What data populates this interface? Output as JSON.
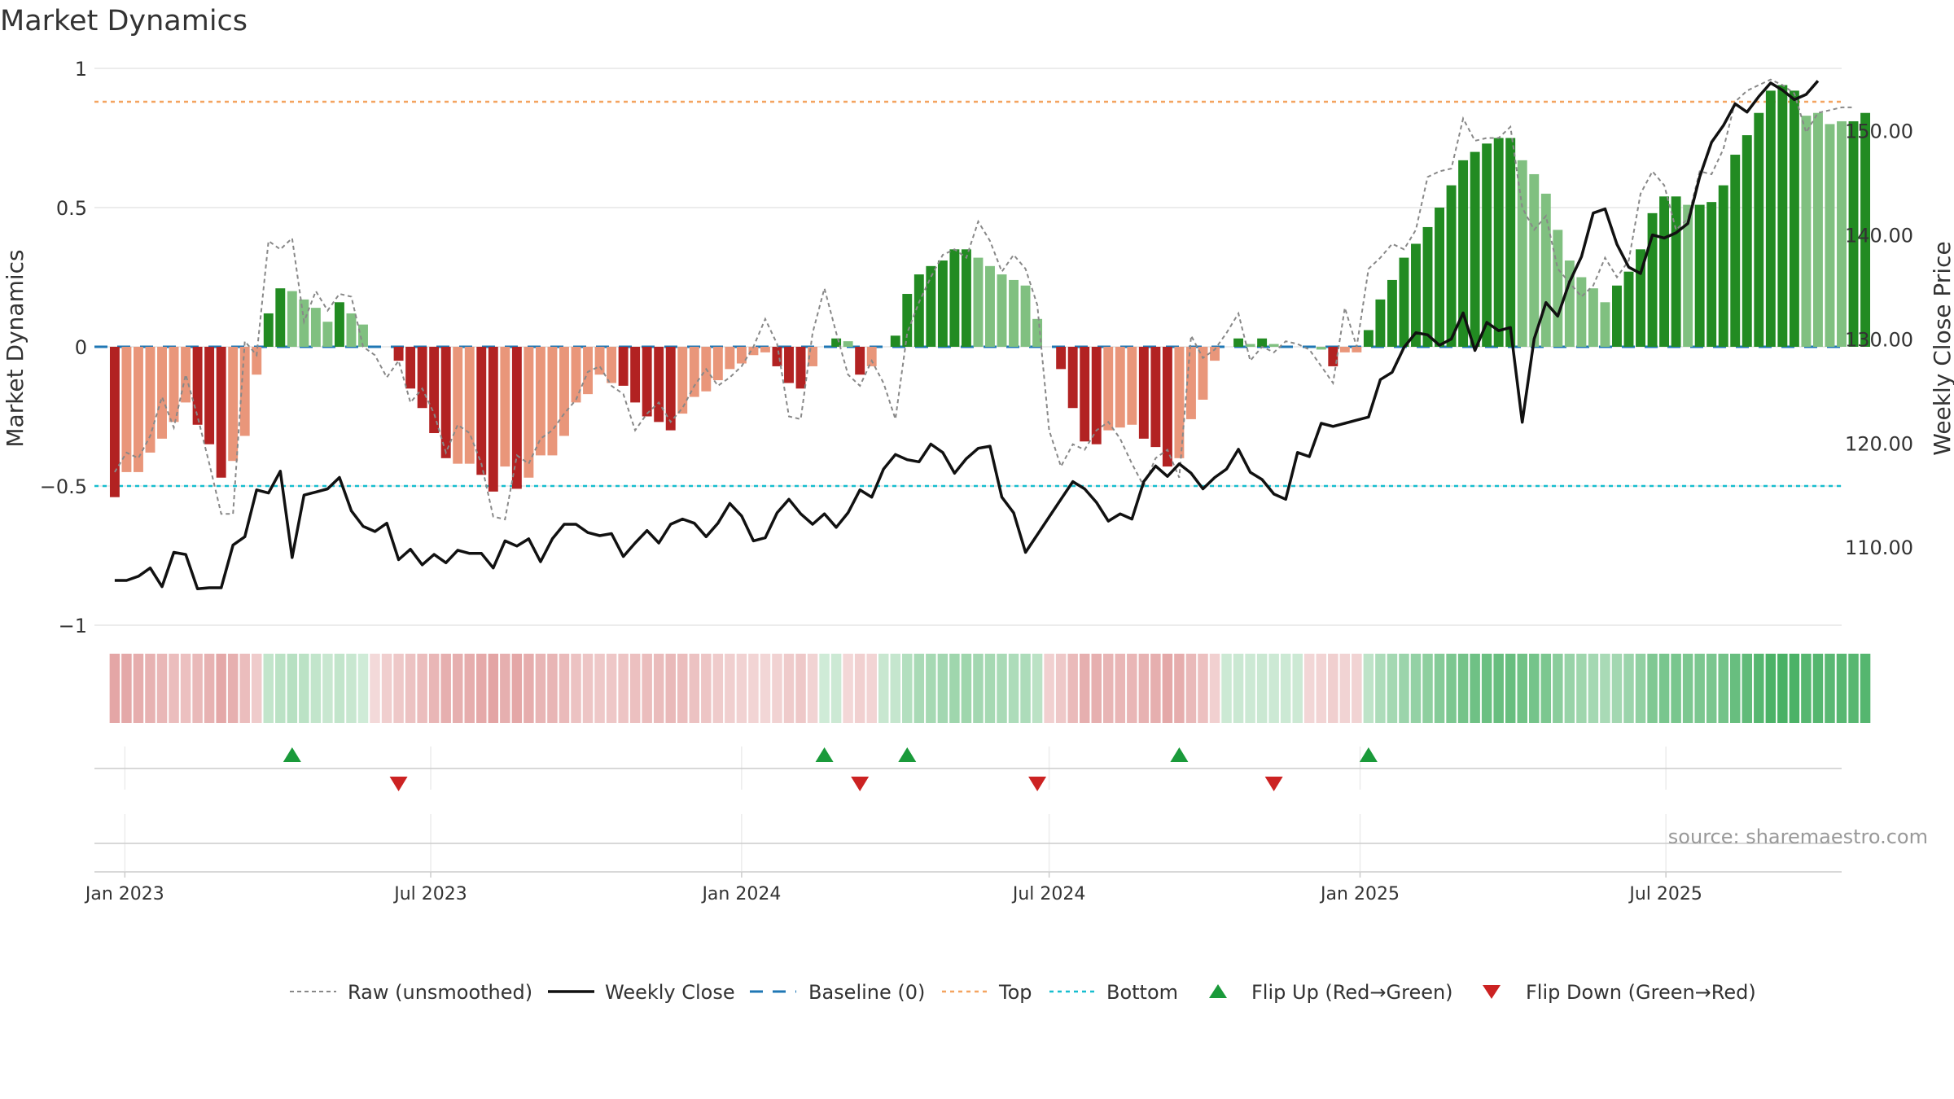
{
  "chart_data": {
    "type": "bar",
    "title": "Market Dynamics",
    "ylabel": "Market Dynamics",
    "ylabel_right": "Weekly Close Price",
    "source": "source: sharemaestro.com",
    "ylim": [
      -1,
      1
    ],
    "ylim_right": [
      102.5,
      156
    ],
    "xlim": [
      "2022-12-14",
      "2025-10-13"
    ],
    "yticks": [
      {
        "v": 1,
        "label": "1"
      },
      {
        "v": 0.5,
        "label": "0.5"
      },
      {
        "v": 0,
        "label": "0"
      },
      {
        "v": -0.5,
        "label": "−0.5"
      },
      {
        "v": -1,
        "label": "−1"
      }
    ],
    "yticks_right": [
      {
        "v": 150,
        "label": "150.00"
      },
      {
        "v": 140,
        "label": "140.00"
      },
      {
        "v": 130,
        "label": "130.00"
      },
      {
        "v": 120,
        "label": "120.00"
      },
      {
        "v": 110,
        "label": "110.00"
      }
    ],
    "xticks": [
      {
        "date": "2023-01-01",
        "label": "Jan 2023"
      },
      {
        "date": "2023-07-01",
        "label": "Jul 2023"
      },
      {
        "date": "2024-01-01",
        "label": "Jan 2024"
      },
      {
        "date": "2024-07-01",
        "label": "Jul 2024"
      },
      {
        "date": "2025-01-01",
        "label": "Jan 2025"
      },
      {
        "date": "2025-07-01",
        "label": "Jul 2025"
      }
    ],
    "grid": true,
    "legend_placement": "bottom",
    "reference_lines": {
      "top": 0.88,
      "bottom": -0.5,
      "baseline": 0
    },
    "colors": {
      "strong_green": "#228b22",
      "light_green": "#80c080",
      "strong_red": "#b22222",
      "light_red": "#e9967a",
      "close_line": "#111111",
      "raw_line": "#888888",
      "baseline": "#1f77b4",
      "top": "#f4a460",
      "bottom": "#17becf",
      "flip_up": "#1a9a3a",
      "flip_down": "#cc2222",
      "strip_green": "#34a853",
      "strip_red": "#cd5c5c"
    },
    "first_week": "2022-12-26",
    "dynamics": [
      -0.54,
      -0.45,
      -0.45,
      -0.38,
      -0.33,
      -0.27,
      -0.2,
      -0.28,
      -0.35,
      -0.47,
      -0.41,
      -0.32,
      -0.1,
      0.12,
      0.21,
      0.2,
      0.17,
      0.14,
      0.09,
      0.16,
      0.12,
      0.08,
      0.0,
      0.0,
      -0.05,
      -0.15,
      -0.22,
      -0.31,
      -0.4,
      -0.42,
      -0.42,
      -0.46,
      -0.52,
      -0.43,
      -0.51,
      -0.47,
      -0.39,
      -0.39,
      -0.32,
      -0.2,
      -0.17,
      -0.1,
      -0.13,
      -0.14,
      -0.2,
      -0.25,
      -0.27,
      -0.3,
      -0.24,
      -0.18,
      -0.16,
      -0.12,
      -0.08,
      -0.06,
      -0.03,
      -0.02,
      -0.07,
      -0.13,
      -0.15,
      -0.07,
      0.0,
      0.03,
      0.02,
      -0.1,
      -0.07,
      0.0,
      0.04,
      0.19,
      0.26,
      0.29,
      0.31,
      0.35,
      0.35,
      0.32,
      0.29,
      0.26,
      0.24,
      0.22,
      0.1,
      0.0,
      -0.08,
      -0.22,
      -0.34,
      -0.35,
      -0.3,
      -0.29,
      -0.28,
      -0.33,
      -0.36,
      -0.43,
      -0.4,
      -0.26,
      -0.19,
      -0.05,
      0.0,
      0.03,
      0.01,
      0.03,
      0.01,
      0.0,
      0.0,
      0.0,
      -0.01,
      -0.07,
      -0.02,
      -0.02,
      0.06,
      0.17,
      0.24,
      0.32,
      0.37,
      0.43,
      0.5,
      0.58,
      0.67,
      0.7,
      0.73,
      0.75,
      0.75,
      0.67,
      0.62,
      0.55,
      0.42,
      0.31,
      0.25,
      0.21,
      0.16,
      0.22,
      0.27,
      0.35,
      0.48,
      0.54,
      0.54,
      0.51,
      0.51,
      0.52,
      0.58,
      0.69,
      0.76,
      0.84,
      0.92,
      0.94,
      0.92,
      0.83,
      0.84,
      0.8,
      0.81,
      0.81,
      0.84
    ],
    "bar_color_codes": [
      "R",
      "r",
      "r",
      "r",
      "r",
      "r",
      "r",
      "R",
      "R",
      "R",
      "r",
      "r",
      "r",
      "G",
      "G",
      "g",
      "g",
      "g",
      "g",
      "G",
      "g",
      "g",
      "g",
      "g",
      "R",
      "R",
      "R",
      "R",
      "R",
      "r",
      "r",
      "R",
      "R",
      "r",
      "R",
      "r",
      "r",
      "r",
      "r",
      "r",
      "r",
      "r",
      "r",
      "R",
      "R",
      "R",
      "R",
      "R",
      "r",
      "r",
      "r",
      "r",
      "r",
      "r",
      "r",
      "r",
      "R",
      "R",
      "R",
      "r",
      "r",
      "G",
      "g",
      "R",
      "r",
      "r",
      "G",
      "G",
      "G",
      "G",
      "G",
      "G",
      "G",
      "g",
      "g",
      "g",
      "g",
      "g",
      "g",
      "g",
      "R",
      "R",
      "R",
      "R",
      "r",
      "r",
      "r",
      "R",
      "R",
      "R",
      "r",
      "r",
      "r",
      "r",
      "r",
      "G",
      "g",
      "G",
      "g",
      "g",
      "g",
      "g",
      "g",
      "R",
      "r",
      "r",
      "G",
      "G",
      "G",
      "G",
      "G",
      "G",
      "G",
      "G",
      "G",
      "G",
      "G",
      "G",
      "G",
      "g",
      "g",
      "g",
      "g",
      "g",
      "g",
      "g",
      "g",
      "G",
      "G",
      "G",
      "G",
      "G",
      "G",
      "g",
      "G",
      "G",
      "G",
      "G",
      "G",
      "G",
      "G",
      "G",
      "G",
      "g",
      "g",
      "g",
      "g",
      "G",
      "G"
    ],
    "raw": [
      -0.45,
      -0.38,
      -0.4,
      -0.32,
      -0.18,
      -0.29,
      -0.1,
      -0.25,
      -0.42,
      -0.6,
      -0.6,
      0.02,
      -0.03,
      0.38,
      0.35,
      0.39,
      0.09,
      0.2,
      0.13,
      0.19,
      0.18,
      0.0,
      -0.03,
      -0.11,
      -0.05,
      -0.2,
      -0.15,
      -0.24,
      -0.38,
      -0.28,
      -0.31,
      -0.42,
      -0.61,
      -0.62,
      -0.39,
      -0.42,
      -0.33,
      -0.3,
      -0.24,
      -0.19,
      -0.09,
      -0.07,
      -0.14,
      -0.17,
      -0.3,
      -0.24,
      -0.2,
      -0.27,
      -0.22,
      -0.14,
      -0.08,
      -0.14,
      -0.11,
      -0.07,
      0.0,
      0.1,
      0.01,
      -0.25,
      -0.26,
      0.05,
      0.21,
      0.05,
      -0.1,
      -0.14,
      -0.05,
      -0.13,
      -0.26,
      0.05,
      0.16,
      0.25,
      0.33,
      0.35,
      0.32,
      0.45,
      0.38,
      0.27,
      0.33,
      0.28,
      0.15,
      -0.3,
      -0.43,
      -0.35,
      -0.37,
      -0.3,
      -0.27,
      -0.33,
      -0.42,
      -0.5,
      -0.4,
      -0.37,
      -0.47,
      0.04,
      -0.04,
      -0.01,
      0.05,
      0.12,
      -0.05,
      0.0,
      -0.02,
      0.02,
      0.01,
      -0.01,
      -0.07,
      -0.13,
      0.14,
      0.0,
      0.28,
      0.32,
      0.37,
      0.35,
      0.42,
      0.61,
      0.63,
      0.64,
      0.82,
      0.74,
      0.75,
      0.75,
      0.79,
      0.5,
      0.42,
      0.47,
      0.28,
      0.23,
      0.18,
      0.22,
      0.32,
      0.25,
      0.31,
      0.55,
      0.63,
      0.58,
      0.42,
      0.46,
      0.63,
      0.62,
      0.71,
      0.88,
      0.92,
      0.94,
      0.96,
      0.94,
      0.91,
      0.77,
      0.84,
      0.85,
      0.86,
      0.86
    ],
    "close": [
      106.8,
      106.8,
      107.2,
      108.0,
      106.2,
      109.5,
      109.3,
      106.0,
      106.1,
      106.1,
      110.2,
      111.0,
      115.5,
      115.2,
      117.3,
      109.0,
      115.0,
      115.3,
      115.6,
      116.7,
      113.5,
      112.0,
      111.5,
      112.3,
      108.8,
      109.8,
      108.3,
      109.3,
      108.5,
      109.7,
      109.4,
      109.4,
      108.0,
      110.6,
      110.1,
      110.8,
      108.6,
      110.8,
      112.2,
      112.2,
      111.4,
      111.1,
      111.3,
      109.1,
      110.4,
      111.6,
      110.4,
      112.2,
      112.7,
      112.3,
      111.0,
      112.3,
      114.2,
      113.0,
      110.6,
      110.9,
      113.3,
      114.6,
      113.2,
      112.2,
      113.2,
      111.9,
      113.3,
      115.5,
      114.8,
      117.5,
      118.9,
      118.4,
      118.2,
      119.9,
      119.1,
      117.1,
      118.5,
      119.5,
      119.7,
      114.8,
      113.3,
      109.5,
      111.2,
      112.9,
      114.6,
      116.3,
      115.6,
      114.3,
      112.5,
      113.2,
      112.7,
      116.3,
      117.8,
      116.8,
      118.0,
      117.1,
      115.6,
      116.7,
      117.5,
      119.4,
      117.2,
      116.5,
      115.1,
      114.6,
      119.1,
      118.7,
      121.9,
      121.6,
      121.9,
      122.2,
      122.5,
      126.1,
      126.8,
      129.2,
      130.6,
      130.4,
      129.4,
      130.0,
      132.5,
      128.9,
      131.6,
      130.8,
      131.1,
      122.0,
      130.0,
      133.5,
      132.2,
      135.5,
      137.9,
      142.1,
      142.5,
      139.1,
      136.9,
      136.3,
      140.0,
      139.7,
      140.2,
      141.1,
      145.6,
      148.9,
      150.5,
      152.6,
      151.8,
      153.3,
      154.6,
      153.9,
      153.0,
      153.5,
      154.8
    ],
    "strip": [
      -0.47,
      -0.45,
      -0.42,
      -0.38,
      -0.34,
      -0.3,
      -0.28,
      -0.33,
      -0.38,
      -0.45,
      -0.4,
      -0.3,
      -0.2,
      0.18,
      0.22,
      0.24,
      0.22,
      0.18,
      0.14,
      0.18,
      0.14,
      0.1,
      -0.1,
      -0.18,
      -0.22,
      -0.26,
      -0.3,
      -0.35,
      -0.4,
      -0.4,
      -0.42,
      -0.44,
      -0.48,
      -0.4,
      -0.46,
      -0.42,
      -0.36,
      -0.36,
      -0.32,
      -0.26,
      -0.24,
      -0.22,
      -0.23,
      -0.25,
      -0.28,
      -0.3,
      -0.31,
      -0.33,
      -0.3,
      -0.26,
      -0.24,
      -0.2,
      -0.17,
      -0.15,
      -0.13,
      -0.12,
      -0.15,
      -0.2,
      -0.22,
      -0.14,
      0.1,
      0.12,
      -0.11,
      -0.16,
      -0.13,
      0.14,
      0.16,
      0.26,
      0.32,
      0.34,
      0.36,
      0.38,
      0.38,
      0.36,
      0.34,
      0.32,
      0.3,
      0.3,
      0.22,
      -0.16,
      -0.22,
      -0.32,
      -0.4,
      -0.4,
      -0.36,
      -0.35,
      -0.35,
      -0.38,
      -0.4,
      -0.45,
      -0.42,
      -0.33,
      -0.28,
      -0.16,
      0.12,
      0.13,
      0.12,
      0.13,
      0.12,
      0.12,
      0.12,
      -0.12,
      -0.13,
      -0.17,
      -0.14,
      -0.14,
      0.2,
      0.3,
      0.35,
      0.4,
      0.44,
      0.48,
      0.53,
      0.58,
      0.63,
      0.66,
      0.68,
      0.7,
      0.7,
      0.65,
      0.62,
      0.58,
      0.5,
      0.42,
      0.38,
      0.35,
      0.32,
      0.36,
      0.4,
      0.46,
      0.56,
      0.6,
      0.6,
      0.58,
      0.58,
      0.59,
      0.63,
      0.7,
      0.74,
      0.8,
      0.86,
      0.88,
      0.86,
      0.8,
      0.81,
      0.78,
      0.79,
      0.79,
      0.81
    ],
    "flips_up": [
      "2023-04-10",
      "2024-02-19",
      "2024-04-08",
      "2024-09-16",
      "2025-01-06"
    ],
    "flips_down": [
      "2023-06-12",
      "2024-03-11",
      "2024-06-24",
      "2024-11-11"
    ],
    "legend": [
      {
        "key": "raw",
        "label": "Raw (unsmoothed)"
      },
      {
        "key": "close",
        "label": "Weekly Close"
      },
      {
        "key": "baseline",
        "label": "Baseline (0)"
      },
      {
        "key": "top",
        "label": "Top"
      },
      {
        "key": "bottom",
        "label": "Bottom"
      },
      {
        "key": "flip_up",
        "label": "Flip Up (Red→Green)"
      },
      {
        "key": "flip_down",
        "label": "Flip Down (Green→Red)"
      }
    ]
  }
}
